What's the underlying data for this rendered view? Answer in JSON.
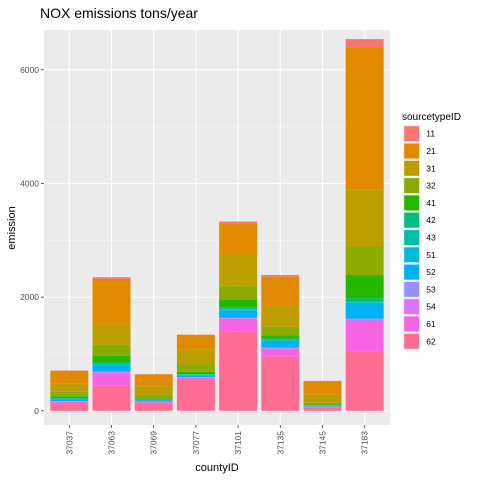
{
  "chart_data": {
    "type": "bar",
    "stacked": true,
    "title": "NOX emissions tons/year",
    "xlabel": "countyID",
    "ylabel": "emission",
    "ylim": [
      -250,
      6700
    ],
    "yticks": [
      0,
      2000,
      4000,
      6000
    ],
    "grid": true,
    "legend_position": "right",
    "legend_title": "sourcetypeID",
    "categories": [
      "37037",
      "37063",
      "37069",
      "37077",
      "37101",
      "37135",
      "37145",
      "37183"
    ],
    "series": [
      {
        "name": "62",
        "color": "#FF6C91",
        "values": [
          130,
          440,
          120,
          550,
          1390,
          950,
          60,
          1050
        ]
      },
      {
        "name": "61",
        "color": "#F564E3",
        "values": [
          30,
          230,
          30,
          30,
          230,
          140,
          10,
          530
        ]
      },
      {
        "name": "54",
        "color": "#DC71FA",
        "values": [
          5,
          10,
          5,
          5,
          10,
          10,
          3,
          20
        ]
      },
      {
        "name": "53",
        "color": "#9590FF",
        "values": [
          5,
          10,
          5,
          5,
          10,
          10,
          3,
          20
        ]
      },
      {
        "name": "52",
        "color": "#00B0F6",
        "values": [
          35,
          110,
          25,
          35,
          130,
          110,
          15,
          250
        ]
      },
      {
        "name": "51",
        "color": "#00BCD8",
        "values": [
          5,
          15,
          5,
          5,
          15,
          15,
          3,
          30
        ]
      },
      {
        "name": "43",
        "color": "#00C1A3",
        "values": [
          5,
          15,
          5,
          5,
          15,
          15,
          3,
          30
        ]
      },
      {
        "name": "42",
        "color": "#00BF7D",
        "values": [
          10,
          20,
          5,
          10,
          20,
          20,
          5,
          50
        ]
      },
      {
        "name": "41",
        "color": "#24B700",
        "values": [
          30,
          120,
          20,
          40,
          130,
          60,
          10,
          410
        ]
      },
      {
        "name": "32",
        "color": "#8CAB00",
        "values": [
          80,
          200,
          60,
          130,
          250,
          150,
          30,
          500
        ]
      },
      {
        "name": "31",
        "color": "#BB9D00",
        "values": [
          150,
          350,
          150,
          270,
          550,
          380,
          150,
          1000
        ]
      },
      {
        "name": "21",
        "color": "#E18A00",
        "values": [
          220,
          800,
          210,
          250,
          550,
          500,
          230,
          2500
        ]
      },
      {
        "name": "11",
        "color": "#F8766D",
        "values": [
          5,
          30,
          5,
          5,
          30,
          30,
          5,
          150
        ]
      }
    ]
  }
}
